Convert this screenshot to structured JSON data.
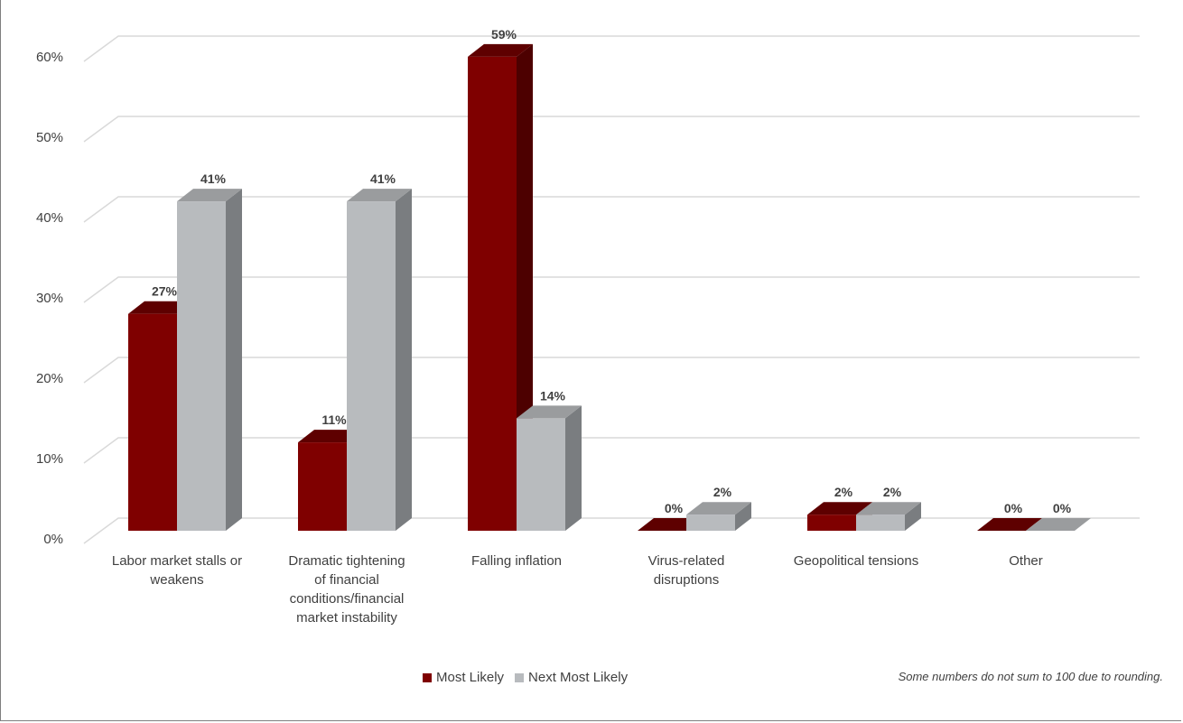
{
  "chart_data": {
    "type": "bar",
    "categories": [
      "Labor market stalls or weakens",
      "Dramatic tightening of financial conditions/financial market instability",
      "Falling inflation",
      "Virus-related disruptions",
      "Geopolitical tensions",
      "Other"
    ],
    "category_lines": [
      [
        "Labor market stalls or",
        "weakens"
      ],
      [
        "Dramatic tightening",
        "of financial",
        "conditions/financial",
        "market instability"
      ],
      [
        "Falling inflation"
      ],
      [
        "Virus-related",
        "disruptions"
      ],
      [
        "Geopolitical tensions"
      ],
      [
        "Other"
      ]
    ],
    "series": [
      {
        "name": "Most Likely",
        "values": [
          27,
          11,
          59,
          0,
          2,
          0
        ],
        "labels": [
          "27%",
          "11%",
          "59%",
          "0%",
          "2%",
          "0%"
        ]
      },
      {
        "name": "Next Most Likely",
        "values": [
          41,
          41,
          14,
          2,
          2,
          0
        ],
        "labels": [
          "41%",
          "41%",
          "14%",
          "2%",
          "2%",
          "0%"
        ]
      }
    ],
    "y_ticks": [
      "0%",
      "10%",
      "20%",
      "30%",
      "40%",
      "50%",
      "60%"
    ],
    "ylim": [
      0,
      60
    ],
    "grid": true,
    "legend_position": "bottom",
    "three_d": true
  },
  "colors": {
    "most_likely": "#7f0000",
    "most_likely_side": "#4d0000",
    "most_likely_top": "#5e0000",
    "next_likely": "#b8bbbe",
    "next_likely_side": "#7a7d80",
    "next_likely_top": "#9a9c9e",
    "grid": "#d9d9d9",
    "text": "#404040"
  },
  "legend": {
    "most_likely": "Most Likely",
    "next_likely": "Next Most Likely"
  },
  "footnote": "Some numbers do not sum to 100 due to rounding."
}
